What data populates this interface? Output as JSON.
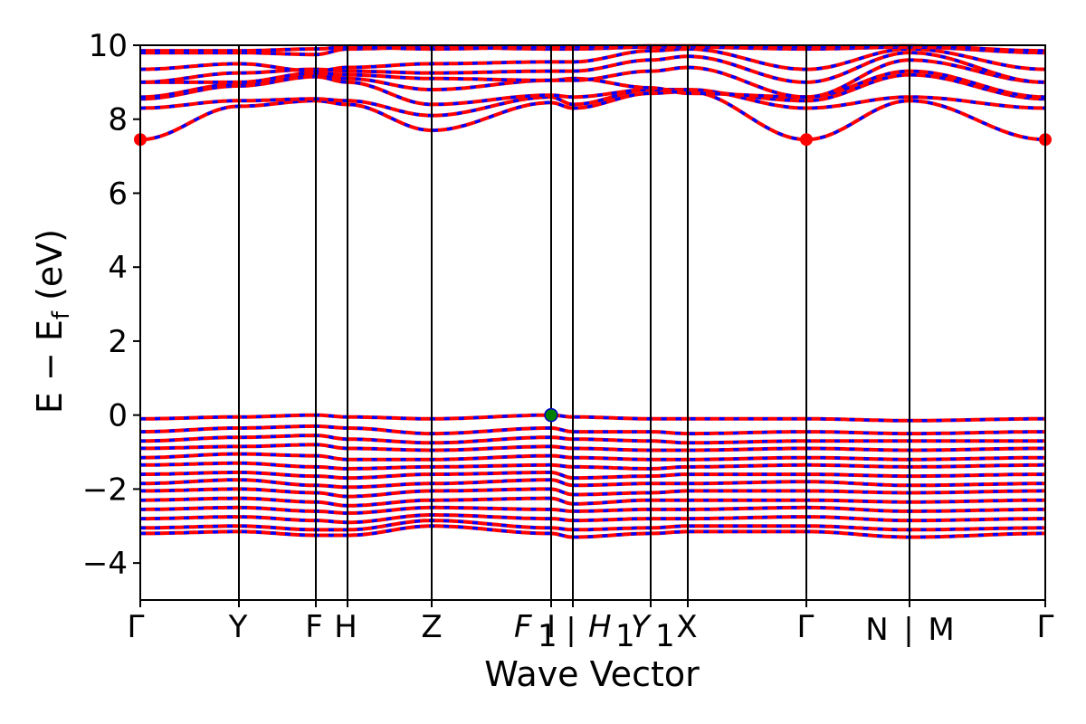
{
  "chart_data": {
    "type": "line",
    "title": "",
    "xlabel": "Wave Vector",
    "ylabel": "E − E",
    "ylabel_subscript": "f",
    "ylabel_unit": " (eV)",
    "ylim": [
      -5,
      10
    ],
    "yticks": [
      -4,
      -2,
      0,
      2,
      4,
      6,
      8,
      10
    ],
    "ytick_labels": [
      "−4",
      "−2",
      "0",
      "2",
      "4",
      "6",
      "8",
      "10"
    ],
    "grid": false,
    "legend": "none",
    "kpoints": [
      {
        "label": "Γ",
        "pos": 0.0
      },
      {
        "label": "Y",
        "pos": 0.109
      },
      {
        "label": "F",
        "pos": 0.194
      },
      {
        "label": "H",
        "pos": 0.229
      },
      {
        "label": "Z",
        "pos": 0.322
      },
      {
        "label": "F",
        "sub": "1",
        "pos": 0.454,
        "italic": true
      },
      {
        "label": "I",
        "pos": 0.478
      },
      {
        "label": "H",
        "sub": "1",
        "pos": 0.564,
        "italic": true
      },
      {
        "label": "Y",
        "sub": "1",
        "pos": 0.605,
        "italic": true
      },
      {
        "label": "X",
        "pos": 0.605
      },
      {
        "label": "Γ",
        "pos": 0.736
      },
      {
        "label": "N",
        "pos": 0.85
      },
      {
        "label": "M",
        "pos": 0.85
      },
      {
        "label": "Γ",
        "pos": 1.0
      }
    ],
    "xtick_text": [
      "Γ",
      "Y",
      "F",
      "H",
      "Z",
      "F",
      "1",
      "I",
      "|",
      "H",
      "1",
      "Y",
      "1",
      "X",
      "Γ",
      "N",
      "|",
      "M",
      "Γ"
    ],
    "vertical_lines": [
      0.109,
      0.194,
      0.229,
      0.322,
      0.454,
      0.478,
      0.564,
      0.605,
      0.736,
      0.85,
      1.0
    ],
    "band_gap_markers": [
      {
        "type": "CBM",
        "x": 0.0,
        "y": 7.45,
        "color": "#ff0000"
      },
      {
        "type": "CBM",
        "x": 0.736,
        "y": 7.45,
        "color": "#ff0000"
      },
      {
        "type": "CBM",
        "x": 1.0,
        "y": 7.45,
        "color": "#ff0000"
      },
      {
        "type": "VBM",
        "x": 0.454,
        "y": 0.0,
        "color": "#008000"
      }
    ],
    "colors": {
      "spin_up": "#ff0000",
      "spin_down": "#0000ff",
      "axes": "#000000"
    },
    "conduction_bands": [
      {
        "base": 7.45,
        "vals": [
          7.45,
          8.35,
          8.5,
          8.4,
          7.7,
          8.45,
          8.3,
          8.7,
          8.75,
          7.45,
          8.5,
          7.45
        ]
      },
      {
        "base": 8.3,
        "vals": [
          8.3,
          8.5,
          8.55,
          8.5,
          8.1,
          8.6,
          8.4,
          8.8,
          8.8,
          8.3,
          8.6,
          8.3
        ]
      },
      {
        "base": 8.55,
        "vals": [
          8.55,
          8.9,
          9.15,
          9.0,
          8.4,
          8.65,
          8.6,
          8.8,
          8.75,
          8.5,
          9.2,
          8.55
        ]
      },
      {
        "base": 8.6,
        "vals": [
          8.6,
          8.95,
          9.2,
          9.1,
          8.8,
          9.05,
          9.1,
          8.85,
          8.7,
          8.6,
          9.3,
          8.6
        ]
      },
      {
        "base": 9.0,
        "vals": [
          9.0,
          9.0,
          9.25,
          9.2,
          9.1,
          9.05,
          9.05,
          9.3,
          9.4,
          8.6,
          9.6,
          9.0
        ]
      },
      {
        "base": 9.0,
        "vals": [
          9.0,
          9.25,
          9.35,
          9.3,
          9.25,
          9.3,
          9.3,
          9.6,
          9.7,
          9.0,
          9.8,
          9.0
        ]
      },
      {
        "base": 9.35,
        "vals": [
          9.35,
          9.5,
          9.3,
          9.4,
          9.5,
          9.55,
          9.55,
          9.85,
          9.9,
          9.35,
          9.9,
          9.35
        ]
      },
      {
        "base": 9.8,
        "vals": [
          9.8,
          9.8,
          9.75,
          9.9,
          9.95,
          9.9,
          9.9,
          9.95,
          9.95,
          9.9,
          9.95,
          9.8
        ]
      },
      {
        "base": 9.85,
        "vals": [
          9.85,
          9.85,
          9.9,
          9.95,
          9.9,
          9.95,
          9.95,
          9.98,
          9.98,
          9.95,
          9.98,
          9.85
        ]
      }
    ],
    "valence_bands": [
      {
        "vals": [
          -0.1,
          -0.05,
          0.0,
          -0.05,
          -0.1,
          0.0,
          -0.05,
          -0.1,
          -0.1,
          -0.1,
          -0.15,
          -0.1
        ]
      },
      {
        "vals": [
          -0.45,
          -0.35,
          -0.3,
          -0.35,
          -0.5,
          -0.35,
          -0.45,
          -0.45,
          -0.5,
          -0.45,
          -0.5,
          -0.45
        ]
      },
      {
        "vals": [
          -0.7,
          -0.6,
          -0.55,
          -0.65,
          -0.75,
          -0.6,
          -0.65,
          -0.7,
          -0.75,
          -0.7,
          -0.7,
          -0.7
        ]
      },
      {
        "vals": [
          -0.9,
          -0.85,
          -0.8,
          -0.9,
          -0.95,
          -0.85,
          -0.9,
          -0.95,
          -0.95,
          -0.9,
          -0.95,
          -0.9
        ]
      },
      {
        "vals": [
          -1.15,
          -1.05,
          -1.1,
          -1.2,
          -1.2,
          -1.1,
          -1.15,
          -1.2,
          -1.2,
          -1.15,
          -1.2,
          -1.15
        ]
      },
      {
        "vals": [
          -1.35,
          -1.3,
          -1.4,
          -1.45,
          -1.4,
          -1.35,
          -1.4,
          -1.45,
          -1.4,
          -1.35,
          -1.4,
          -1.35
        ]
      },
      {
        "vals": [
          -1.6,
          -1.55,
          -1.65,
          -1.7,
          -1.6,
          -1.55,
          -1.7,
          -1.65,
          -1.6,
          -1.6,
          -1.65,
          -1.6
        ]
      },
      {
        "vals": [
          -1.85,
          -1.75,
          -1.9,
          -1.95,
          -1.85,
          -1.75,
          -1.9,
          -1.85,
          -1.85,
          -1.8,
          -1.9,
          -1.85
        ]
      },
      {
        "vals": [
          -2.05,
          -2.0,
          -2.1,
          -2.2,
          -2.05,
          -2.0,
          -2.15,
          -2.1,
          -2.05,
          -2.05,
          -2.1,
          -2.05
        ]
      },
      {
        "vals": [
          -2.3,
          -2.25,
          -2.35,
          -2.45,
          -2.3,
          -2.25,
          -2.4,
          -2.3,
          -2.3,
          -2.3,
          -2.35,
          -2.3
        ]
      },
      {
        "vals": [
          -2.55,
          -2.5,
          -2.6,
          -2.65,
          -2.5,
          -2.55,
          -2.6,
          -2.55,
          -2.55,
          -2.5,
          -2.6,
          -2.55
        ]
      },
      {
        "vals": [
          -2.8,
          -2.75,
          -2.85,
          -2.9,
          -2.7,
          -2.8,
          -2.85,
          -2.8,
          -2.8,
          -2.75,
          -2.85,
          -2.8
        ]
      },
      {
        "vals": [
          -3.05,
          -3.0,
          -3.1,
          -3.1,
          -2.85,
          -3.05,
          -3.1,
          -3.05,
          -3.0,
          -3.0,
          -3.1,
          -3.05
        ]
      },
      {
        "vals": [
          -3.2,
          -3.15,
          -3.25,
          -3.25,
          -3.0,
          -3.2,
          -3.3,
          -3.2,
          -3.15,
          -3.15,
          -3.3,
          -3.2
        ]
      }
    ]
  }
}
